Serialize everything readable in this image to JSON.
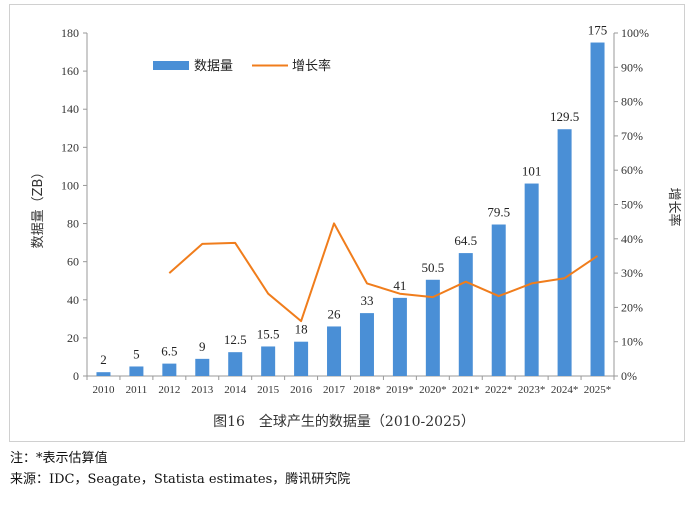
{
  "chart_data": {
    "type": "bar",
    "categories": [
      "2010",
      "2011",
      "2012",
      "2013",
      "2014",
      "2015",
      "2016",
      "2017",
      "2018*",
      "2019*",
      "2020*",
      "2021*",
      "2022*",
      "2023*",
      "2024*",
      "2025*"
    ],
    "series": [
      {
        "name": "数据量",
        "type": "bar",
        "axis": "left",
        "values": [
          2,
          5,
          6.5,
          9,
          12.5,
          15.5,
          18,
          26,
          33,
          41,
          50.5,
          64.5,
          79.5,
          101,
          129.5,
          175
        ],
        "labels": [
          "2",
          "5",
          "6.5",
          "9",
          "12.5",
          "15.5",
          "18",
          "26",
          "33",
          "41",
          "50.5",
          "64.5",
          "79.5",
          "101",
          "129.5",
          "175"
        ],
        "color": "#4a8fd6"
      },
      {
        "name": "增长率",
        "type": "line",
        "axis": "right",
        "values": [
          null,
          null,
          0.3,
          0.385,
          0.388,
          0.24,
          0.16,
          0.445,
          0.27,
          0.24,
          0.23,
          0.275,
          0.233,
          0.27,
          0.285,
          0.35
        ],
        "color": "#f07d1c"
      }
    ],
    "ylabel": "数据量（ZB）",
    "ylabel_right": "增长率",
    "ylim": [
      0,
      180
    ],
    "ylim_right": [
      0,
      1
    ],
    "yticks": [
      "0",
      "20",
      "40",
      "60",
      "80",
      "100",
      "120",
      "140",
      "160",
      "180"
    ],
    "yticks_right": [
      "0%",
      "10%",
      "20%",
      "30%",
      "40%",
      "50%",
      "60%",
      "70%",
      "80%",
      "90%",
      "100%"
    ],
    "grid": false,
    "legend": "top-left"
  },
  "caption": "图16　全球产生的数据量（2010-2025）",
  "note": "注：*表示估算值",
  "source": "来源：IDC，Seagate，Statista estimates，腾讯研究院"
}
